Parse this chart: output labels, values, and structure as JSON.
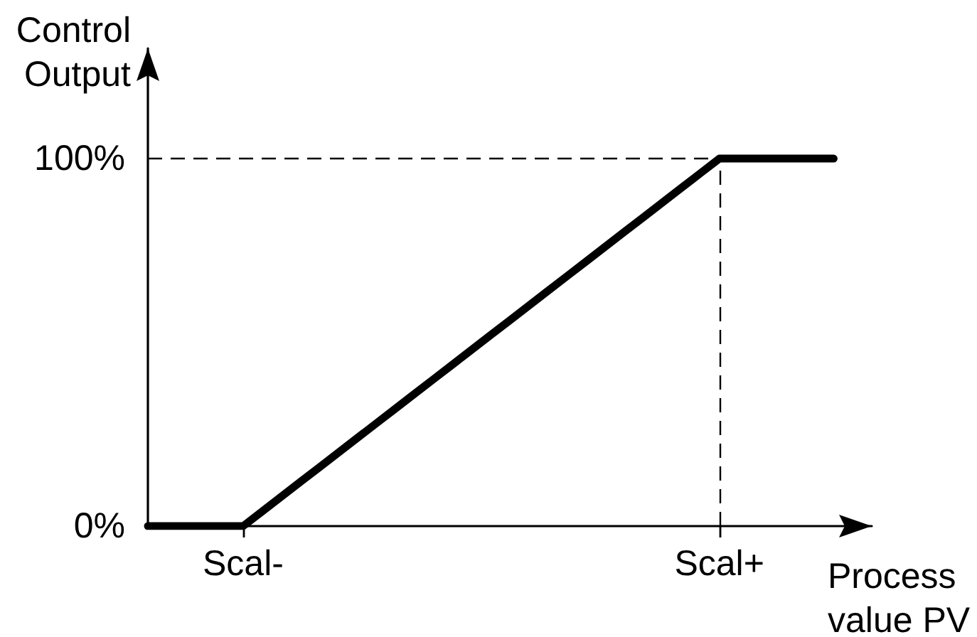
{
  "chart_data": {
    "type": "line",
    "xlabel": "Process\nvalue PV",
    "ylabel": "Control\nOutput",
    "categories": [
      null,
      null,
      null,
      null,
      null,
      "Scal-",
      null,
      null,
      null,
      null,
      null,
      null,
      null,
      null,
      null,
      null,
      null,
      null,
      null,
      null,
      null,
      null,
      null,
      null,
      null,
      null,
      null,
      null,
      null,
      null,
      "Scal+",
      null,
      null,
      null,
      null,
      null,
      null,
      null,
      null
    ],
    "series": [
      {
        "color": "#000000",
        "values": [
          0,
          0,
          0,
          0,
          0,
          0,
          4,
          8,
          12,
          16,
          20,
          24,
          28,
          32,
          36,
          40,
          44,
          48,
          52,
          56,
          60,
          64,
          68,
          72,
          76,
          80,
          84,
          88,
          92,
          96,
          100,
          100,
          100,
          100,
          100,
          100,
          100,
          null,
          null
        ]
      }
    ],
    "ylim": [
      0,
      130
    ],
    "yticks": [
      {
        "value": 0,
        "label": "0%"
      },
      {
        "value": 100,
        "label": "100%"
      }
    ],
    "ref_lines": [
      {
        "axis": "y",
        "value": 100,
        "color": "#000000",
        "line_style": "dashed"
      },
      {
        "axis": "x",
        "value": "Scal+",
        "color": "#000000",
        "line_style": "dashed"
      }
    ],
    "grid": false,
    "marker": "none",
    "line_style": "solid"
  }
}
